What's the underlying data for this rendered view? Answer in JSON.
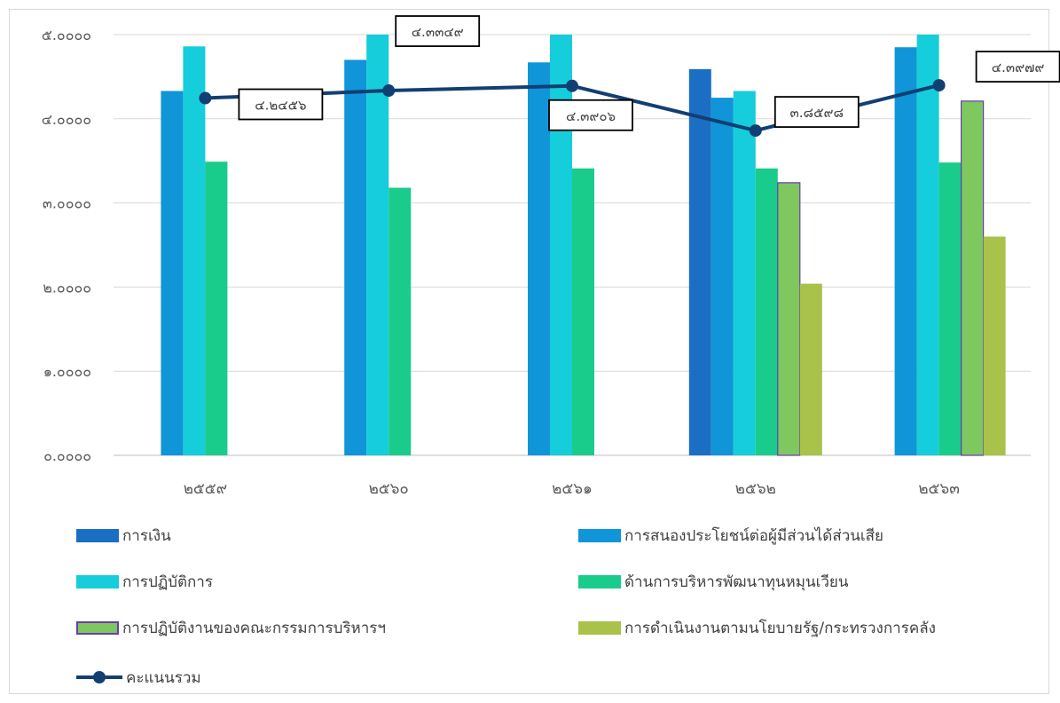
{
  "chart_data": {
    "type": "bar",
    "categories": [
      "๒๕๕๙",
      "๒๕๖๐",
      "๒๕๖๑",
      "๒๕๖๒",
      "๒๕๖๓"
    ],
    "ylim": [
      0,
      5
    ],
    "ytick_labels": [
      "๐.๐๐๐๐",
      "๑.๐๐๐๐",
      "๒.๐๐๐๐",
      "๓.๐๐๐๐",
      "๔.๐๐๐๐",
      "๕.๐๐๐๐"
    ],
    "grid": true,
    "legend_position": "bottom",
    "series": [
      {
        "name": "การเงิน",
        "color": "#1a6fc4",
        "values": [
          null,
          null,
          null,
          4.59,
          null
        ]
      },
      {
        "name": "การสนองประโยชน์ต่อผู้มีส่วนได้ส่วนเสีย",
        "color": "#0f95d8",
        "values": [
          4.33,
          4.7,
          4.67,
          4.25,
          4.85
        ]
      },
      {
        "name": "การปฏิบัติการ",
        "color": "#16cddb",
        "values": [
          4.86,
          5.0,
          5.0,
          4.33,
          5.0
        ]
      },
      {
        "name": "ด้านการบริหารพัฒนาทุนหมุนเวียน",
        "color": "#19cc8b",
        "values": [
          3.49,
          3.18,
          3.41,
          3.41,
          3.48
        ]
      },
      {
        "name": "การปฏิบัติงานของคณะกรรมการบริหารฯ",
        "color": "#7ec85f",
        "border": "#6a3ab0",
        "values": [
          null,
          null,
          null,
          3.24,
          4.21
        ]
      },
      {
        "name": "การดำเนินงานตามนโยบายรัฐ/กระทรวงการคลัง",
        "color": "#a8c24a",
        "values": [
          null,
          null,
          null,
          2.04,
          2.6
        ]
      }
    ],
    "line_series": {
      "name": "คะแนนรวม",
      "color": "#123f73",
      "values": [
        4.2456,
        4.3349,
        4.3906,
        3.8598,
        4.3979
      ],
      "labels": [
        "๔.๒๔๕๖",
        "๔.๓๓๔๙",
        "๔.๓๙๐๖",
        "๓.๘๕๙๘",
        "๔.๓๙๗๙"
      ]
    }
  }
}
